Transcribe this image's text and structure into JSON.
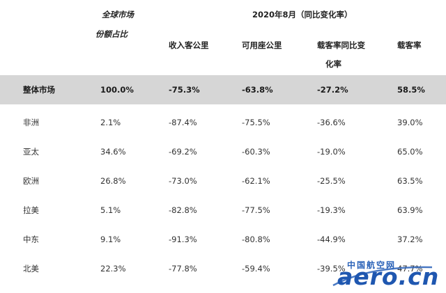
{
  "header": {
    "share_top": "全球市场",
    "share_bottom": "份额占比",
    "period": "2020年8月（同比变化率）",
    "col_rpk": "收入客公里",
    "col_ask": "可用座公里",
    "col_lf_change_1": "载客率同比变",
    "col_lf_change_2": "化率",
    "col_lf": "载客率"
  },
  "rows": [
    {
      "region": "整体市场",
      "share": "100.0%",
      "rpk": "-75.3%",
      "ask": "-63.8%",
      "lf_change": "-27.2%",
      "lf": "58.5%"
    },
    {
      "region": "非洲",
      "share": "2.1%",
      "rpk": "-87.4%",
      "ask": "-75.5%",
      "lf_change": "-36.6%",
      "lf": "39.0%"
    },
    {
      "region": "亚太",
      "share": "34.6%",
      "rpk": "-69.2%",
      "ask": "-60.3%",
      "lf_change": "-19.0%",
      "lf": "65.0%"
    },
    {
      "region": "欧洲",
      "share": "26.8%",
      "rpk": "-73.0%",
      "ask": "-62.1%",
      "lf_change": "-25.5%",
      "lf": "63.5%"
    },
    {
      "region": "拉美",
      "share": "5.1%",
      "rpk": "-82.8%",
      "ask": "-77.5%",
      "lf_change": "-19.3%",
      "lf": "63.9%"
    },
    {
      "region": "中东",
      "share": "9.1%",
      "rpk": "-91.3%",
      "ask": "-80.8%",
      "lf_change": "-44.9%",
      "lf": "37.2%"
    },
    {
      "region": "北美",
      "share": "22.3%",
      "rpk": "-77.8%",
      "ask": "-59.4%",
      "lf_change": "-39.5%",
      "lf": "47.7%"
    }
  ],
  "watermark": {
    "cn": "中国航空网",
    "en": "aero.cn",
    "color": "#1f57b0"
  }
}
